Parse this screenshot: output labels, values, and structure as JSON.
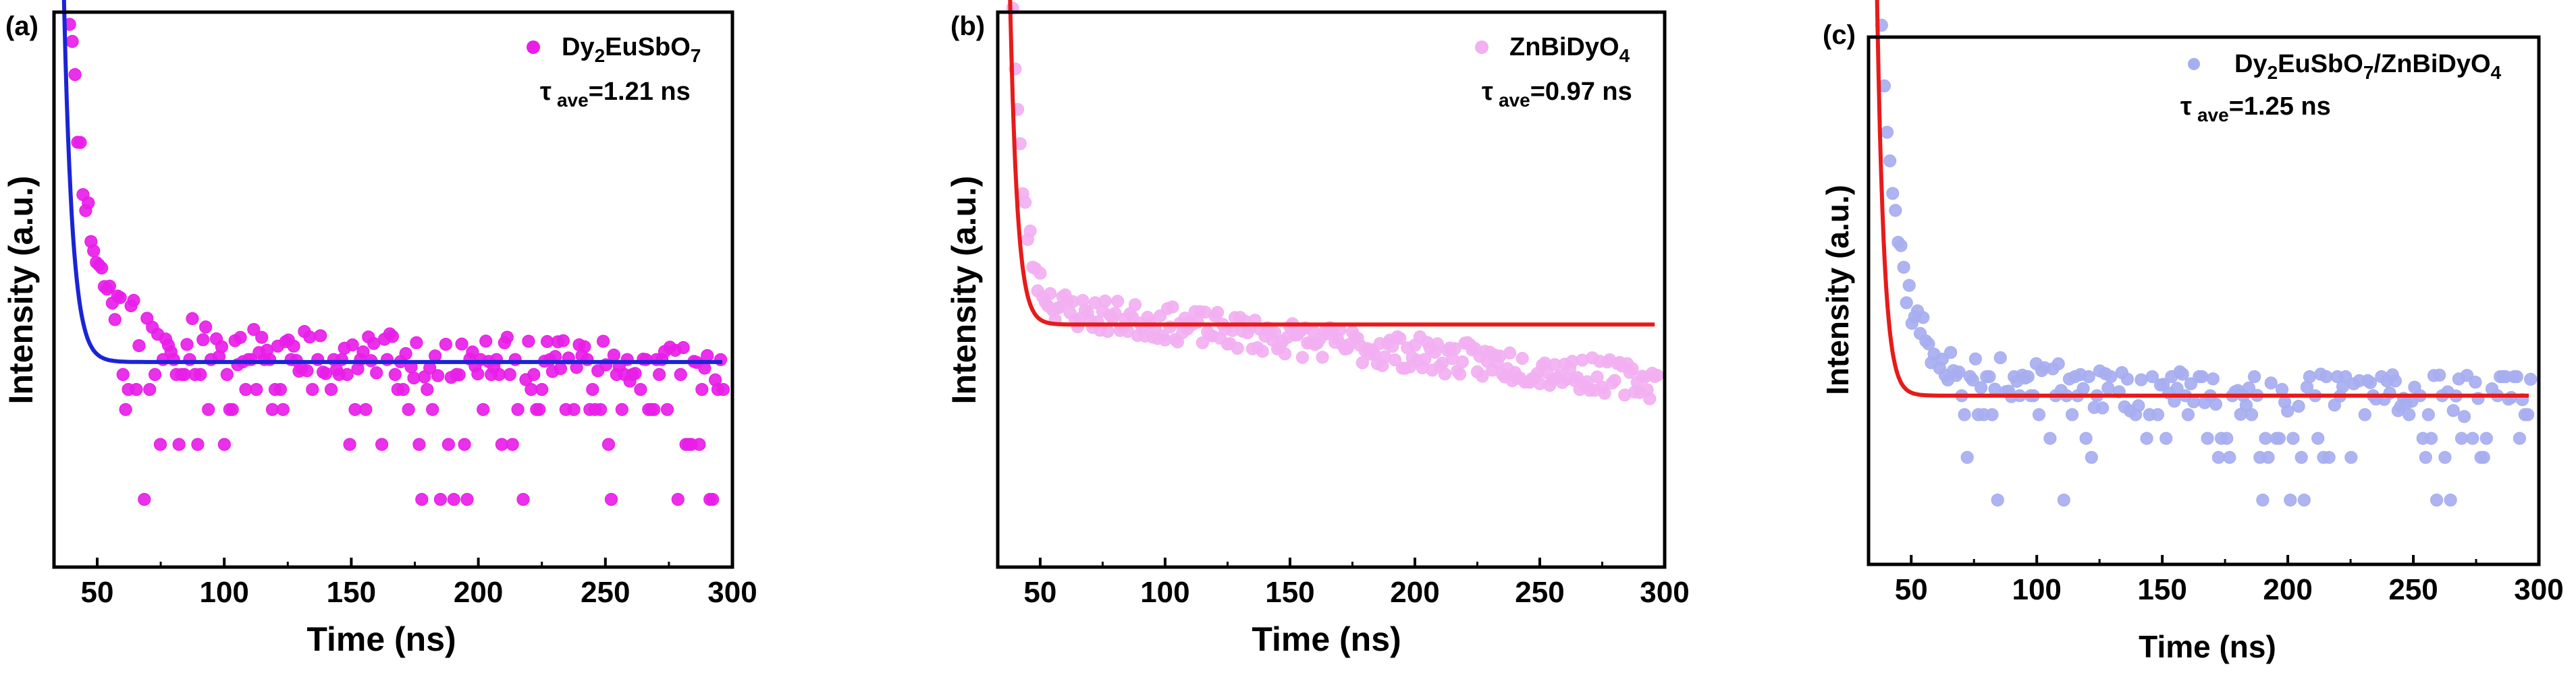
{
  "chart_data": [
    {
      "type": "scatter",
      "panel_label": "(a)",
      "xlabel": "Time (ns)",
      "ylabel": "Intensity (a.u.)",
      "xlim": [
        33,
        300
      ],
      "ylim": [
        0,
        1
      ],
      "xticks": [
        "50",
        "100",
        "150",
        "200",
        "250",
        "300"
      ],
      "legend": {
        "main": "Dy",
        "sub1": "2",
        "mid": "EuSbO",
        "sub2": "7"
      },
      "tau": {
        "symbol": "τ",
        "sub": "ave",
        "value": "=1.21 ns"
      },
      "marker_color": "#e81ee8",
      "fit_color": "#1a24d6",
      "fit": {
        "t0": 36,
        "amplitude": 0.95,
        "tau": 3.4,
        "baseline": 0.355
      },
      "scatter": {
        "seed": 11,
        "t_start": 36,
        "t_end": 297,
        "step": 1.05,
        "tau": 6.5,
        "baseline": 0.36,
        "plateau_amp": 0.12,
        "plateau_tau": 45,
        "noise": 0.045,
        "floor": 0.08,
        "levels": [
          0.36,
          0.33,
          0.3,
          0.26,
          0.19,
          0.08
        ]
      }
    },
    {
      "type": "scatter",
      "panel_label": "(b)",
      "xlabel": "Time (ns)",
      "ylabel": "Intensity (a.u.)",
      "xlim": [
        33,
        300
      ],
      "ylim": [
        0,
        1
      ],
      "xticks": [
        "50",
        "100",
        "150",
        "200",
        "250",
        "300"
      ],
      "legend": {
        "main": "ZnBiDyO",
        "sub1": "",
        "mid": "",
        "sub2": "4"
      },
      "tau": {
        "symbol": "τ",
        "sub": "ave",
        "value": "=0.97 ns"
      },
      "marker_color": "#f2b0f2",
      "fit_color": "#e81a1a",
      "fit": {
        "t0": 37,
        "amplitude": 0.9,
        "tau": 2.9,
        "baseline": 0.43
      },
      "scatter": {
        "seed": 23,
        "t_start": 37,
        "t_end": 297,
        "step": 1.0,
        "tau": 4.5,
        "baseline": 0.47,
        "plateau_amp": 0.0,
        "plateau_tau": 80,
        "noise": 0.035,
        "floor": 0.17,
        "slope": -0.0006,
        "levels": []
      }
    },
    {
      "type": "scatter",
      "panel_label": "(c)",
      "xlabel": "Time (ns)",
      "ylabel": "Intensity (a.u.)",
      "xlim": [
        33,
        300
      ],
      "ylim": [
        0,
        1
      ],
      "xticks": [
        "50",
        "100",
        "150",
        "200",
        "250",
        "300"
      ],
      "legend": {
        "main": "Dy",
        "sub1": "2",
        "mid": "EuSbO",
        "sub2": "7",
        "tail": "/ZnBiDyO",
        "sub3": "4"
      },
      "tau": {
        "symbol": "τ",
        "sub": "ave",
        "value": "=1.25 ns"
      },
      "marker_color": "#a7aef0",
      "fit_color": "#e81a1a",
      "fit": {
        "t0": 36,
        "amplitude": 0.96,
        "tau": 2.8,
        "baseline": 0.3
      },
      "scatter": {
        "seed": 37,
        "t_start": 36,
        "t_end": 297,
        "step": 1.1,
        "tau": 6.0,
        "baseline": 0.3,
        "plateau_amp": 0.14,
        "plateau_tau": 40,
        "noise": 0.045,
        "floor": 0.08,
        "levels": [
          0.34,
          0.3,
          0.26,
          0.21,
          0.17,
          0.08
        ]
      }
    }
  ]
}
